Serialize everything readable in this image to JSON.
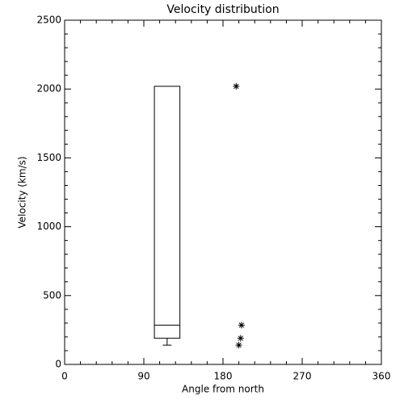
{
  "chart_data": {
    "type": "box",
    "title": "Velocity distribution",
    "x_label": "Angle from north",
    "y_label": "Velocity (km/s)",
    "xlim": [
      0,
      360
    ],
    "xticks": [
      0,
      90,
      180,
      270,
      360
    ],
    "ylim": [
      0,
      2500
    ],
    "yticks": [
      0,
      500,
      1000,
      1500,
      2000,
      2500
    ],
    "color": "#000000",
    "boxes": [
      {
        "x": [
          102,
          131
        ],
        "whislo": 140,
        "q1": 190,
        "med": 285,
        "q3": 2020,
        "whishi": 2020
      }
    ],
    "points": {
      "x": [
        195,
        201,
        200,
        198
      ],
      "values": [
        2020,
        285,
        190,
        140
      ]
    }
  }
}
